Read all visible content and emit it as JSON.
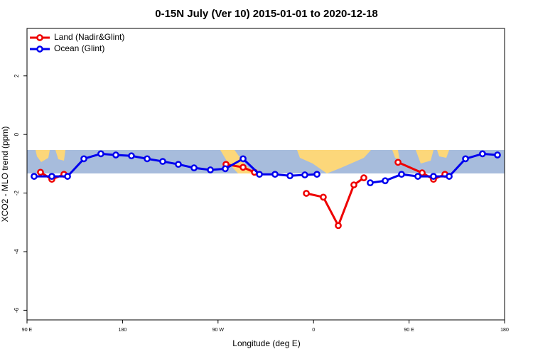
{
  "chart_data": {
    "type": "line",
    "title": "0-15N July (Ver 10)   2015-01-01 to 2020-12-18",
    "x_label": "Longitude (deg E)",
    "y_label": "XCO2 - MLO trend (ppm)",
    "xlim": [
      90,
      540
    ],
    "ylim": [
      -6.33,
      3.62
    ],
    "xticks": [
      {
        "value": 90,
        "label": "90 E"
      },
      180,
      {
        "value": 270,
        "label": "90 W"
      },
      {
        "value": 360,
        "label": "0"
      },
      {
        "value": 450,
        "label": "90 E"
      },
      {
        "value": 540,
        "label": "180"
      }
    ],
    "yticks": [
      2,
      0,
      -2,
      -4,
      -6
    ],
    "legend": "top-left",
    "series": [
      {
        "name": "Land (Nadir&Glint)",
        "color": "#ee0000",
        "x": [
          102.7,
          113.4,
          124.8,
          null,
          277.5,
          293.6,
          304.3,
          null,
          353.2,
          369.2,
          383.3,
          398.0,
          407.4,
          null,
          439.6,
          462.3,
          473.0,
          483.8
        ],
        "values": [
          -1.29,
          -1.53,
          -1.36,
          null,
          -1.02,
          -1.12,
          -1.29,
          null,
          -2.01,
          -2.14,
          -3.11,
          -1.72,
          -1.48,
          null,
          -0.95,
          -1.31,
          -1.53,
          -1.36
        ]
      },
      {
        "name": "Ocean (Glint)",
        "color": "#0000ee",
        "x": [
          96.7,
          113.4,
          128.2,
          143.6,
          159.6,
          173.7,
          188.4,
          203.2,
          217.9,
          232.6,
          247.4,
          262.8,
          276.8,
          293.6,
          309.0,
          323.7,
          337.8,
          351.8,
          363.2,
          null,
          413.4,
          427.5,
          442.9,
          458.3,
          473.0,
          487.8,
          503.2,
          519.2,
          533.3
        ],
        "values": [
          -1.43,
          -1.43,
          -1.43,
          -0.83,
          -0.66,
          -0.7,
          -0.73,
          -0.83,
          -0.92,
          -1.02,
          -1.14,
          -1.21,
          -1.17,
          -0.83,
          -1.36,
          -1.36,
          -1.41,
          -1.38,
          -1.36,
          null,
          -1.65,
          -1.58,
          -1.36,
          -1.43,
          -1.43,
          -1.43,
          -0.83,
          -0.66,
          -0.7
        ]
      }
    ]
  }
}
